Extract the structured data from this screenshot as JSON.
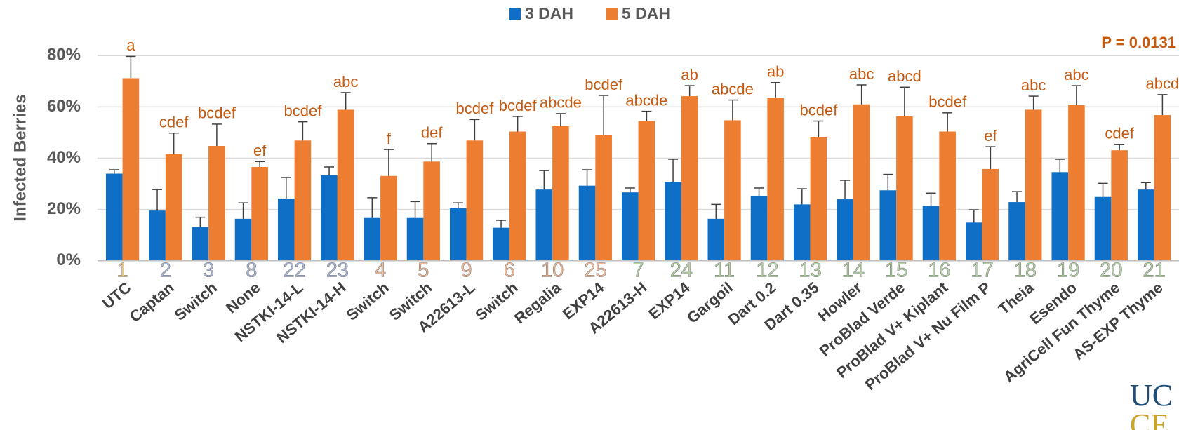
{
  "chart_data": {
    "type": "bar",
    "y_label": "Infected Berries",
    "annotation": "P = 0.0131",
    "logo": [
      "UC",
      "CE"
    ],
    "numbers": [
      "1",
      "2",
      "3",
      "8",
      "22",
      "23",
      "4",
      "5",
      "9",
      "6",
      "10",
      "25",
      "7",
      "24",
      "11",
      "12",
      "13",
      "14",
      "15",
      "16",
      "17",
      "18",
      "19",
      "20",
      "21"
    ],
    "number_colors": [
      "#e8c98a",
      "#a9b5d6",
      "#a9b5d6",
      "#a9b5d6",
      "#a9b5d6",
      "#a9b5d6",
      "#f2b999",
      "#f2b999",
      "#f2b999",
      "#f2b999",
      "#f2b999",
      "#f2b999",
      "#b5d3a6",
      "#b5d3a6",
      "#b5d3a6",
      "#b5d3a6",
      "#b5d3a6",
      "#b5d3a6",
      "#b5d3a6",
      "#b5d3a6",
      "#b5d3a6",
      "#b5d3a6",
      "#b5d3a6",
      "#b5d3a6",
      "#b5d3a6"
    ],
    "categories": [
      "UTC",
      "Captan",
      "Switch",
      "None",
      "NSTKI-14-L",
      "NSTKI-14-H",
      "Switch",
      "Switch",
      "A22613-L",
      "Switch",
      "Regalia",
      "EXP14",
      "A22613-H",
      "EXP14",
      "Gargoil",
      "Dart 0.2",
      "Dart 0.35",
      "Howler",
      "ProBlad Verde",
      "ProBlad V+ Kiplant",
      "ProBlad V+ Nu Film P",
      "Theia",
      "Esendo",
      "AgriCell Fun Thyme",
      "AS-EXP Thyme"
    ],
    "series": [
      {
        "name": "3 DAH",
        "color": "#0f6fc6",
        "values": [
          34.0,
          19.6,
          13.2,
          16.4,
          24.3,
          33.4,
          16.7,
          16.7,
          20.5,
          12.9,
          27.8,
          29.3,
          26.7,
          30.8,
          16.4,
          25.2,
          22.0,
          24.0,
          27.5,
          21.4,
          14.9,
          22.9,
          34.6,
          24.9,
          27.8
        ],
        "errors": [
          1.5,
          8.2,
          3.8,
          6.2,
          8.2,
          3.2,
          7.9,
          6.4,
          2.1,
          2.9,
          7.4,
          6.2,
          1.7,
          8.8,
          5.6,
          3.2,
          6.1,
          7.4,
          6.2,
          5.0,
          5.0,
          4.1,
          5.0,
          5.3,
          2.7
        ]
      },
      {
        "name": "5 DAH",
        "color": "#ed7d31",
        "values": [
          71.2,
          41.6,
          44.8,
          36.6,
          46.9,
          58.9,
          33.1,
          38.7,
          46.9,
          50.4,
          52.5,
          48.9,
          54.5,
          64.2,
          54.8,
          63.6,
          48.1,
          61.0,
          56.3,
          50.4,
          35.8,
          58.9,
          60.7,
          43.1,
          56.8
        ],
        "errors": [
          8.5,
          8.2,
          8.5,
          2.1,
          7.3,
          6.7,
          10.3,
          7.0,
          8.2,
          5.9,
          4.9,
          15.6,
          3.8,
          4.1,
          7.9,
          5.9,
          6.4,
          7.6,
          11.4,
          7.3,
          8.7,
          5.3,
          7.6,
          2.3,
          8.0
        ],
        "letters": [
          "a",
          "cdef",
          "bcdef",
          "ef",
          "bcdef",
          "abc",
          "f",
          "def",
          "bcdef",
          "bcdef",
          "abcde",
          "bcdef",
          "abcde",
          "ab",
          "abcde",
          "ab",
          "bcdef",
          "abc",
          "abcd",
          "bcdef",
          "ef",
          "abc",
          "abc",
          "cdef",
          "abcd"
        ]
      }
    ],
    "ylim": [
      0,
      80
    ],
    "yticks": [
      {
        "value": 0,
        "label": "0%"
      },
      {
        "value": 20,
        "label": "20%"
      },
      {
        "value": 40,
        "label": "40%"
      },
      {
        "value": 60,
        "label": "60%"
      },
      {
        "value": 80,
        "label": "80%"
      }
    ],
    "grid": true,
    "legend": "top"
  }
}
